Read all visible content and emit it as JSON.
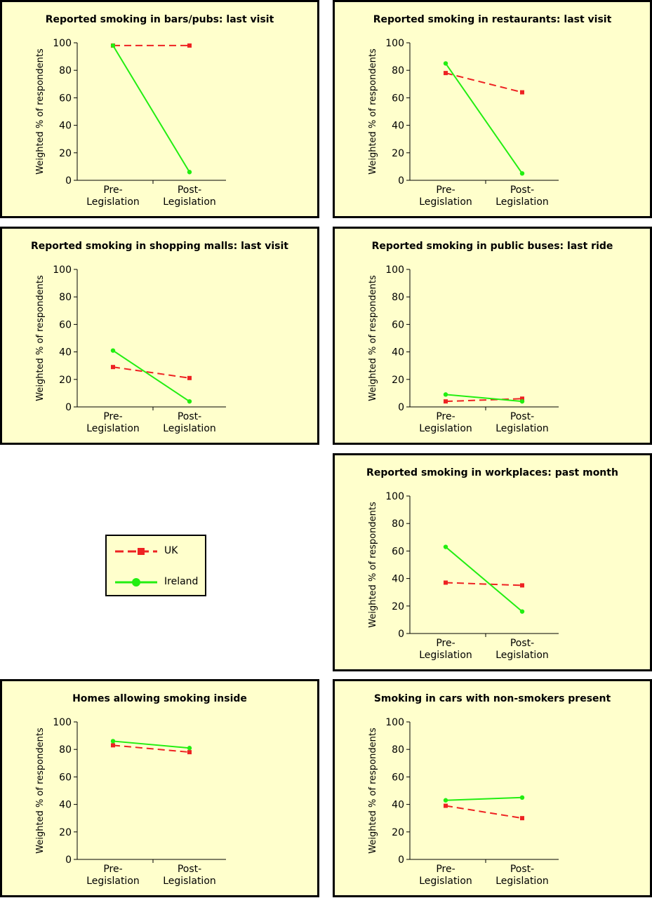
{
  "colors": {
    "uk": "#ee2222",
    "ireland": "#22ee11",
    "panel_bg": "#ffffcc"
  },
  "legend": {
    "uk_label": "UK",
    "ireland_label": "Ireland"
  },
  "chart_data": [
    {
      "type": "line",
      "title": "Reported smoking in bars/pubs: last visit",
      "ylabel": "Weighted % of respondents",
      "ylim": [
        0,
        100
      ],
      "yticks": [
        "0",
        "20",
        "40",
        "60",
        "80",
        "100"
      ],
      "categories": [
        [
          "Pre-",
          "Legislation"
        ],
        [
          "Post-",
          "Legislation"
        ]
      ],
      "series": [
        {
          "name": "UK",
          "values": [
            98,
            98
          ]
        },
        {
          "name": "Ireland",
          "values": [
            98,
            6
          ]
        }
      ]
    },
    {
      "type": "line",
      "title": "Reported smoking in restaurants: last visit",
      "ylabel": "Weighted % of respondents",
      "ylim": [
        0,
        100
      ],
      "yticks": [
        "0",
        "20",
        "40",
        "60",
        "80",
        "100"
      ],
      "categories": [
        [
          "Pre-",
          "Legislation"
        ],
        [
          "Post-",
          "Legislation"
        ]
      ],
      "series": [
        {
          "name": "UK",
          "values": [
            78,
            64
          ]
        },
        {
          "name": "Ireland",
          "values": [
            85,
            5
          ]
        }
      ]
    },
    {
      "type": "line",
      "title": "Reported smoking in shopping malls: last visit",
      "ylabel": "Weighted % of respondents",
      "ylim": [
        0,
        100
      ],
      "yticks": [
        "0",
        "20",
        "40",
        "60",
        "80",
        "100"
      ],
      "categories": [
        [
          "Pre-",
          "Legislation"
        ],
        [
          "Post-",
          "Legislation"
        ]
      ],
      "series": [
        {
          "name": "UK",
          "values": [
            29,
            21
          ]
        },
        {
          "name": "Ireland",
          "values": [
            41,
            4
          ]
        }
      ]
    },
    {
      "type": "line",
      "title": "Reported smoking in public buses: last ride",
      "ylabel": "Weighted % of respondents",
      "ylim": [
        0,
        100
      ],
      "yticks": [
        "0",
        "20",
        "40",
        "60",
        "80",
        "100"
      ],
      "categories": [
        [
          "Pre-",
          "Legislation"
        ],
        [
          "Post-",
          "Legislation"
        ]
      ],
      "series": [
        {
          "name": "UK",
          "values": [
            4,
            6
          ]
        },
        {
          "name": "Ireland",
          "values": [
            9,
            4
          ]
        }
      ]
    },
    {
      "type": "line",
      "title": "Reported smoking in workplaces: past month",
      "ylabel": "Weighted % of respondents",
      "ylim": [
        0,
        100
      ],
      "yticks": [
        "0",
        "20",
        "40",
        "60",
        "80",
        "100"
      ],
      "categories": [
        [
          "Pre-",
          "Legislation"
        ],
        [
          "Post-",
          "Legislation"
        ]
      ],
      "series": [
        {
          "name": "UK",
          "values": [
            37,
            35
          ]
        },
        {
          "name": "Ireland",
          "values": [
            63,
            16
          ]
        }
      ]
    },
    {
      "type": "line",
      "title": "Homes allowing smoking inside",
      "ylabel": "Weighted % of respondents",
      "ylim": [
        0,
        100
      ],
      "yticks": [
        "0",
        "20",
        "40",
        "60",
        "80",
        "100"
      ],
      "categories": [
        [
          "Pre-",
          "Legislation"
        ],
        [
          "Post-",
          "Legislation"
        ]
      ],
      "series": [
        {
          "name": "UK",
          "values": [
            83,
            78
          ]
        },
        {
          "name": "Ireland",
          "values": [
            86,
            81
          ]
        }
      ]
    },
    {
      "type": "line",
      "title": "Smoking in cars with non-smokers present",
      "ylabel": "Weighted % of respondents",
      "ylim": [
        0,
        100
      ],
      "yticks": [
        "0",
        "20",
        "40",
        "60",
        "80",
        "100"
      ],
      "categories": [
        [
          "Pre-",
          "Legislation"
        ],
        [
          "Post-",
          "Legislation"
        ]
      ],
      "series": [
        {
          "name": "UK",
          "values": [
            39,
            30
          ]
        },
        {
          "name": "Ireland",
          "values": [
            43,
            45
          ]
        }
      ]
    }
  ]
}
